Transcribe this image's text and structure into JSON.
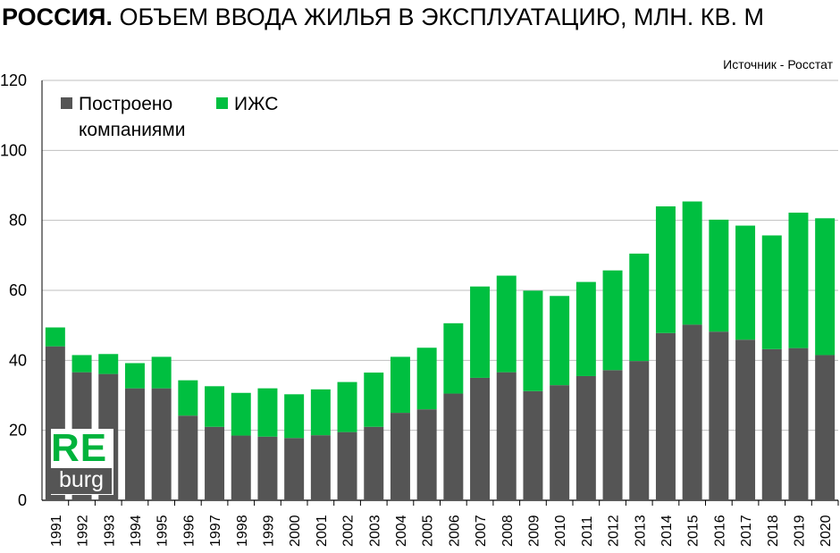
{
  "header": {
    "title_bold": "РОССИЯ.",
    "title_rest": " ОБЪЕМ ВВОДА  ЖИЛЬЯ В ЭКСПЛУАТАЦИЮ, МЛН. КВ. М",
    "source": "Источник - Росстат"
  },
  "logo": {
    "top": "RE",
    "bottom": "burg"
  },
  "chart_data": {
    "type": "bar",
    "stacked": true,
    "title": "РОССИЯ. ОБЪЕМ ВВОДА  ЖИЛЬЯ В ЭКСПЛУАТАЦИЮ, МЛН. КВ. М",
    "xlabel": "",
    "ylabel": "",
    "ylim": [
      0,
      120
    ],
    "yticks": [
      0,
      20,
      40,
      60,
      80,
      100,
      120
    ],
    "grid": true,
    "legend_position": "top-left",
    "categories": [
      "1991",
      "1992",
      "1993",
      "1994",
      "1995",
      "1996",
      "1997",
      "1998",
      "1999",
      "2000",
      "2001",
      "2002",
      "2003",
      "2004",
      "2005",
      "2006",
      "2007",
      "2008",
      "2009",
      "2010",
      "2011",
      "2012",
      "2013",
      "2014",
      "2015",
      "2016",
      "2017",
      "2018",
      "2019",
      "2020"
    ],
    "series": [
      {
        "name": "Построено компаниями",
        "legend_lines": [
          "Построено",
          "компаниями"
        ],
        "color": "#555555",
        "values": [
          44.0,
          36.6,
          36.1,
          32.0,
          32.0,
          24.2,
          21.0,
          18.5,
          18.2,
          17.8,
          18.6,
          19.5,
          21.0,
          25.0,
          26.0,
          30.5,
          35.0,
          36.6,
          31.2,
          32.9,
          35.5,
          37.2,
          39.8,
          47.8,
          50.2,
          48.2,
          45.9,
          43.2,
          43.5,
          41.5
        ]
      },
      {
        "name": "ИЖС",
        "legend_lines": [
          "ИЖС"
        ],
        "color": "#00bf40",
        "values": [
          5.4,
          4.9,
          5.7,
          7.2,
          9.0,
          10.1,
          11.6,
          12.2,
          13.8,
          12.5,
          13.1,
          14.3,
          15.5,
          16.0,
          17.6,
          20.1,
          26.1,
          27.6,
          28.7,
          25.5,
          26.9,
          28.5,
          30.7,
          36.2,
          35.2,
          32.0,
          32.6,
          32.5,
          38.7,
          39.1
        ]
      }
    ]
  }
}
